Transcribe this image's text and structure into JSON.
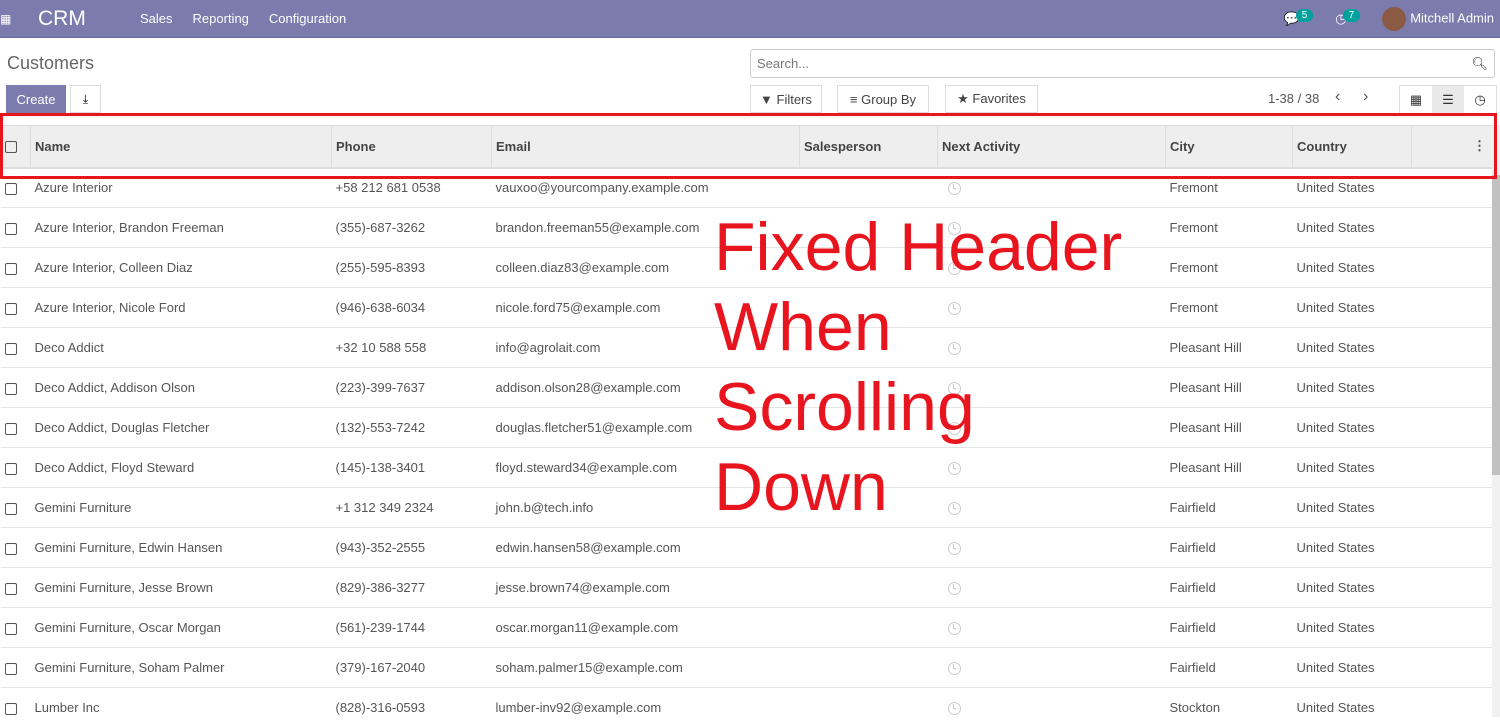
{
  "nav": {
    "app": "CRM",
    "menus": [
      "Sales",
      "Reporting",
      "Configuration"
    ],
    "messages_count": "5",
    "activities_count": "7",
    "user": "Mitchell Admin"
  },
  "page": {
    "title": "Customers",
    "create_label": "Create"
  },
  "search": {
    "placeholder": "Search..."
  },
  "filters": {
    "filters": "Filters",
    "group_by": "Group By",
    "favorites": "Favorites"
  },
  "pager": "1-38 / 38",
  "columns": [
    "Name",
    "Phone",
    "Email",
    "Salesperson",
    "Next Activity",
    "City",
    "Country"
  ],
  "rows": [
    [
      "Azure Interior",
      "+58 212 681 0538",
      "vauxoo@yourcompany.example.com",
      "",
      "",
      "Fremont",
      "United States"
    ],
    [
      "Azure Interior, Brandon Freeman",
      "(355)-687-3262",
      "brandon.freeman55@example.com",
      "",
      "",
      "Fremont",
      "United States"
    ],
    [
      "Azure Interior, Colleen Diaz",
      "(255)-595-8393",
      "colleen.diaz83@example.com",
      "",
      "",
      "Fremont",
      "United States"
    ],
    [
      "Azure Interior, Nicole Ford",
      "(946)-638-6034",
      "nicole.ford75@example.com",
      "",
      "",
      "Fremont",
      "United States"
    ],
    [
      "Deco Addict",
      "+32 10 588 558",
      "info@agrolait.com",
      "",
      "",
      "Pleasant Hill",
      "United States"
    ],
    [
      "Deco Addict, Addison Olson",
      "(223)-399-7637",
      "addison.olson28@example.com",
      "",
      "",
      "Pleasant Hill",
      "United States"
    ],
    [
      "Deco Addict, Douglas Fletcher",
      "(132)-553-7242",
      "douglas.fletcher51@example.com",
      "",
      "",
      "Pleasant Hill",
      "United States"
    ],
    [
      "Deco Addict, Floyd Steward",
      "(145)-138-3401",
      "floyd.steward34@example.com",
      "",
      "",
      "Pleasant Hill",
      "United States"
    ],
    [
      "Gemini Furniture",
      "+1 312 349 2324",
      "john.b@tech.info",
      "",
      "",
      "Fairfield",
      "United States"
    ],
    [
      "Gemini Furniture, Edwin Hansen",
      "(943)-352-2555",
      "edwin.hansen58@example.com",
      "",
      "",
      "Fairfield",
      "United States"
    ],
    [
      "Gemini Furniture, Jesse Brown",
      "(829)-386-3277",
      "jesse.brown74@example.com",
      "",
      "",
      "Fairfield",
      "United States"
    ],
    [
      "Gemini Furniture, Oscar Morgan",
      "(561)-239-1744",
      "oscar.morgan11@example.com",
      "",
      "",
      "Fairfield",
      "United States"
    ],
    [
      "Gemini Furniture, Soham Palmer",
      "(379)-167-2040",
      "soham.palmer15@example.com",
      "",
      "",
      "Fairfield",
      "United States"
    ],
    [
      "Lumber Inc",
      "(828)-316-0593",
      "lumber-inv92@example.com",
      "",
      "",
      "Stockton",
      "United States"
    ]
  ],
  "annotation": [
    "Fixed Header",
    "When Scrolling",
    "Down"
  ],
  "colors": {
    "navbar": "#7c7bad",
    "badge": "#00a09d",
    "annotation": "#e8141e"
  }
}
